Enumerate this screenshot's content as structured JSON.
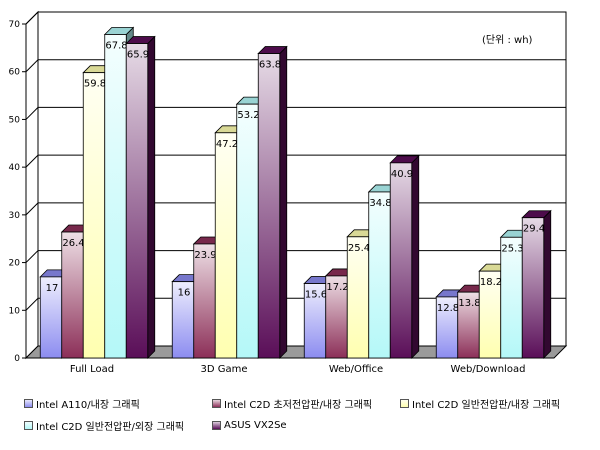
{
  "chart_data": {
    "type": "bar",
    "title": "",
    "xlabel": "",
    "ylabel": "",
    "unit_note": "(단위 : wh)",
    "categories": [
      "Full Load",
      "3D Game",
      "Web/Office",
      "Web/Download"
    ],
    "ylim": [
      0,
      70
    ],
    "yticks": [
      0,
      10,
      20,
      30,
      40,
      50,
      60,
      70
    ],
    "grid": true,
    "legend_position": "bottom",
    "series": [
      {
        "name": "Intel A110/내장 그래픽",
        "values": [
          17,
          16,
          15.6,
          12.8
        ],
        "labels": [
          "17",
          "16",
          "15.6",
          "12.8"
        ],
        "color": "#8c8cf0"
      },
      {
        "name": "Intel C2D 초저전압판/내장 그래픽",
        "values": [
          26.4,
          23.9,
          17.2,
          13.8
        ],
        "labels": [
          "26.4",
          "23.9",
          "17.2",
          "13.8"
        ],
        "color": "#8c2f58"
      },
      {
        "name": "Intel C2D 일반전압판/내장 그래픽",
        "values": [
          59.8,
          47.2,
          25.4,
          18.2
        ],
        "labels": [
          "59.8",
          "47.2",
          "25.4",
          "18.2"
        ],
        "color": "#ffffb0"
      },
      {
        "name": "Intel C2D 일반전압판/외장 그래픽",
        "values": [
          67.8,
          53.2,
          34.8,
          25.3
        ],
        "labels": [
          "67.8",
          "53.2",
          "34.8",
          "25.3"
        ],
        "color": "#b4f8f8"
      },
      {
        "name": "ASUS VX2Se",
        "values": [
          65.9,
          63.8,
          40.9,
          29.4
        ],
        "labels": [
          "65.9",
          "63.8",
          "40.9",
          "29.4"
        ],
        "color": "#5a0e58"
      }
    ]
  }
}
